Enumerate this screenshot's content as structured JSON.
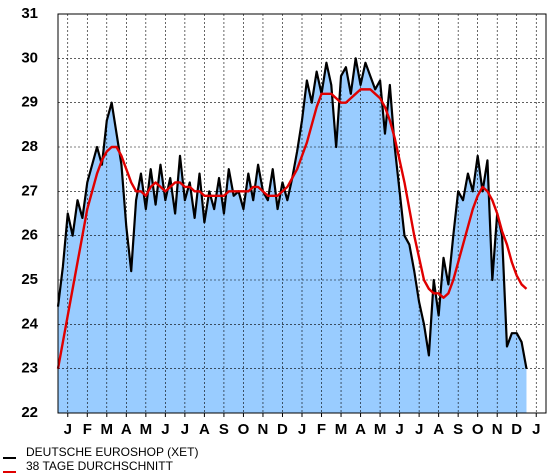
{
  "chart_data": {
    "type": "area",
    "x": [
      0,
      0.25,
      0.5,
      0.75,
      1,
      1.25,
      1.5,
      1.75,
      2,
      2.25,
      2.5,
      2.75,
      3,
      3.25,
      3.5,
      3.75,
      4,
      4.25,
      4.5,
      4.75,
      5,
      5.25,
      5.5,
      5.75,
      6,
      6.25,
      6.5,
      6.75,
      7,
      7.25,
      7.5,
      7.75,
      8,
      8.25,
      8.5,
      8.75,
      9,
      9.25,
      9.5,
      9.75,
      10,
      10.25,
      10.5,
      10.75,
      11,
      11.25,
      11.5,
      11.75,
      12,
      12.25,
      12.5,
      12.75,
      13,
      13.25,
      13.5,
      13.75,
      14,
      14.25,
      14.5,
      14.75,
      15,
      15.25,
      15.5,
      15.75,
      16,
      16.25,
      16.5,
      16.75,
      17,
      17.25,
      17.5,
      17.75,
      18,
      18.25,
      18.5,
      18.75,
      19,
      19.25,
      19.5,
      19.75,
      20,
      20.25,
      20.5,
      20.75,
      21,
      21.25,
      21.5,
      21.75,
      22,
      22.25,
      22.5,
      22.75,
      23,
      23.25,
      23.5,
      23.75,
      24
    ],
    "series": [
      {
        "name": "DEUTSCHE EUROSHOP (XET)",
        "color": "#000000",
        "fill": "#99ccff",
        "values": [
          24.4,
          25.3,
          26.5,
          26.0,
          26.8,
          26.4,
          27.2,
          27.6,
          28.0,
          27.6,
          28.6,
          29.0,
          28.3,
          27.6,
          26.2,
          25.2,
          26.8,
          27.4,
          26.6,
          27.5,
          26.7,
          27.6,
          26.8,
          27.3,
          26.5,
          27.8,
          26.8,
          27.2,
          26.4,
          27.4,
          26.3,
          27.0,
          26.6,
          27.3,
          26.5,
          27.5,
          26.9,
          27.0,
          26.6,
          27.4,
          26.8,
          27.6,
          27.0,
          26.8,
          27.5,
          26.6,
          27.2,
          26.8,
          27.3,
          27.9,
          28.6,
          29.5,
          29.0,
          29.7,
          29.2,
          29.9,
          29.4,
          28.0,
          29.6,
          29.8,
          29.2,
          30.0,
          29.4,
          29.9,
          29.6,
          29.3,
          29.5,
          28.3,
          29.4,
          28.0,
          27.0,
          26.0,
          25.8,
          25.2,
          24.5,
          24.0,
          23.3,
          25.0,
          24.2,
          25.5,
          24.9,
          26.0,
          27.0,
          26.8,
          27.4,
          27.0,
          27.8,
          27.0,
          27.7,
          25.0,
          26.5,
          26.0,
          23.5,
          23.8,
          23.8,
          23.6,
          23.0
        ]
      },
      {
        "name": "38 TAGE DURCHSCHNITT",
        "color": "#e00000",
        "values": [
          23.0,
          23.6,
          24.2,
          24.8,
          25.4,
          26.0,
          26.6,
          27.0,
          27.4,
          27.7,
          27.9,
          28.0,
          28.0,
          27.8,
          27.5,
          27.2,
          27.0,
          27.0,
          26.9,
          27.1,
          27.2,
          27.1,
          27.0,
          27.1,
          27.2,
          27.2,
          27.1,
          27.1,
          27.0,
          27.0,
          26.9,
          26.9,
          26.9,
          26.9,
          26.9,
          27.0,
          27.0,
          27.0,
          27.0,
          27.0,
          27.1,
          27.1,
          27.0,
          26.9,
          26.9,
          26.9,
          27.0,
          27.1,
          27.3,
          27.5,
          27.8,
          28.1,
          28.5,
          28.9,
          29.2,
          29.2,
          29.2,
          29.1,
          29.0,
          29.0,
          29.1,
          29.2,
          29.3,
          29.3,
          29.3,
          29.2,
          29.1,
          28.9,
          28.6,
          28.2,
          27.7,
          27.2,
          26.6,
          26.0,
          25.5,
          25.0,
          24.8,
          24.7,
          24.7,
          24.6,
          24.7,
          25.0,
          25.4,
          25.8,
          26.2,
          26.6,
          26.9,
          27.1,
          27.0,
          26.8,
          26.5,
          26.1,
          25.8,
          25.4,
          25.1,
          24.9,
          24.8
        ]
      }
    ],
    "xlim": [
      0,
      25
    ],
    "xticks": [
      {
        "value": 0.5,
        "label": "J"
      },
      {
        "value": 1.5,
        "label": "F"
      },
      {
        "value": 2.5,
        "label": "M"
      },
      {
        "value": 3.5,
        "label": "A"
      },
      {
        "value": 4.5,
        "label": "M"
      },
      {
        "value": 5.5,
        "label": "J"
      },
      {
        "value": 6.5,
        "label": "J"
      },
      {
        "value": 7.5,
        "label": "A"
      },
      {
        "value": 8.5,
        "label": "S"
      },
      {
        "value": 9.5,
        "label": "O"
      },
      {
        "value": 10.5,
        "label": "N"
      },
      {
        "value": 11.5,
        "label": "D"
      },
      {
        "value": 12.5,
        "label": "J"
      },
      {
        "value": 13.5,
        "label": "F"
      },
      {
        "value": 14.5,
        "label": "M"
      },
      {
        "value": 15.5,
        "label": "A"
      },
      {
        "value": 16.5,
        "label": "M"
      },
      {
        "value": 17.5,
        "label": "J"
      },
      {
        "value": 18.5,
        "label": "J"
      },
      {
        "value": 19.5,
        "label": "A"
      },
      {
        "value": 20.5,
        "label": "S"
      },
      {
        "value": 21.5,
        "label": "O"
      },
      {
        "value": 22.5,
        "label": "N"
      },
      {
        "value": 23.5,
        "label": "D"
      },
      {
        "value": 24.5,
        "label": "J"
      }
    ],
    "ylim": [
      22,
      31
    ],
    "yticks": [
      22,
      23,
      24,
      25,
      26,
      27,
      28,
      29,
      30,
      31
    ],
    "grid": true
  }
}
